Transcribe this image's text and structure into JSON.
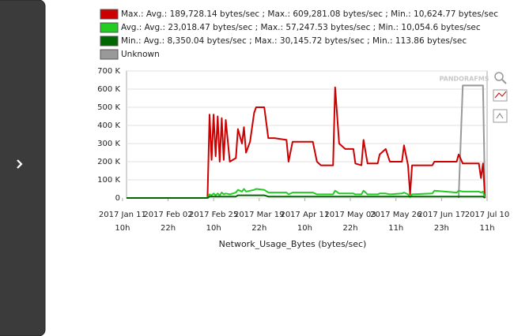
{
  "chart_data": {
    "type": "line",
    "xlabel": "Network_Usage_Bytes (bytes/sec)",
    "watermark": "PANDORAFMS",
    "xlim": [
      "2017-01-13T10",
      "2017-07-10T11"
    ],
    "xticks": [
      {
        "value": "2017-01-11T10",
        "label": "2017 Jan 11 10h"
      },
      {
        "value": "2017-02-02T22",
        "label": "2017 Feb 02 22h"
      },
      {
        "value": "2017-02-25T10",
        "label": "2017 Feb 25 10h"
      },
      {
        "value": "2017-03-19T22",
        "label": "2017 Mar 19 22h"
      },
      {
        "value": "2017-04-11T10",
        "label": "2017 Apr 11 10h"
      },
      {
        "value": "2017-05-03T22",
        "label": "2017 May 03 22h"
      },
      {
        "value": "2017-05-26T11",
        "label": "2017 May 26 11h"
      },
      {
        "value": "2017-06-17T23",
        "label": "2017 Jun 17 23h"
      },
      {
        "value": "2017-07-10T11",
        "label": "2017 Jul 10 11h"
      }
    ],
    "ylim": [
      0,
      700000
    ],
    "yticks": [
      0,
      {
        "value": 100000,
        "label": "100 K"
      },
      {
        "value": 200000,
        "label": "200 K"
      },
      {
        "value": 300000,
        "label": "300 K"
      },
      {
        "value": 400000,
        "label": "400 K"
      },
      {
        "value": 500000,
        "label": "500 K"
      },
      {
        "value": 600000,
        "label": "600 K"
      },
      {
        "value": 700000,
        "label": "700 K"
      }
    ],
    "x": [
      "2017-01-13T10",
      "2017-02-22T10",
      "2017-02-23T10",
      "2017-02-24T10",
      "2017-02-25T10",
      "2017-02-26T10",
      "2017-02-27T10",
      "2017-02-28T10",
      "2017-03-01T10",
      "2017-03-02T10",
      "2017-03-03T10",
      "2017-03-05T10",
      "2017-03-08T10",
      "2017-03-09T10",
      "2017-03-11T10",
      "2017-03-12T10",
      "2017-03-13T10",
      "2017-03-15T10",
      "2017-03-17T10",
      "2017-03-18T10",
      "2017-03-22T10",
      "2017-03-24T10",
      "2017-03-27T10",
      "2017-04-02T10",
      "2017-04-03T10",
      "2017-04-05T10",
      "2017-04-15T10",
      "2017-04-17T10",
      "2017-04-19T10",
      "2017-04-25T10",
      "2017-04-26T10",
      "2017-04-28T10",
      "2017-05-01T10",
      "2017-05-05T10",
      "2017-05-06T10",
      "2017-05-09T10",
      "2017-05-10T10",
      "2017-05-12T10",
      "2017-05-17T10",
      "2017-05-18T10",
      "2017-05-21T10",
      "2017-05-23T10",
      "2017-05-29T10",
      "2017-05-30T10",
      "2017-06-01T10",
      "2017-06-02T10",
      "2017-06-03T10",
      "2017-06-13T10",
      "2017-06-14T10",
      "2017-06-25T10",
      "2017-06-26T10",
      "2017-06-28T10",
      "2017-07-06T10",
      "2017-07-07T10",
      "2017-07-08T10",
      "2017-07-09T10"
    ],
    "series": [
      {
        "name": "Max.: Avg.: 189,728.14 bytes/sec ; Max.: 609,281.08 bytes/sec ; Min.: 10,624.77 bytes/sec",
        "color": "#cc0000",
        "values": [
          0,
          0,
          460000,
          210000,
          460000,
          230000,
          450000,
          200000,
          440000,
          210000,
          430000,
          200000,
          220000,
          380000,
          300000,
          390000,
          250000,
          310000,
          470000,
          500000,
          500000,
          330000,
          330000,
          320000,
          200000,
          310000,
          310000,
          200000,
          180000,
          180000,
          610000,
          300000,
          270000,
          270000,
          190000,
          180000,
          320000,
          190000,
          190000,
          240000,
          270000,
          200000,
          200000,
          290000,
          180000,
          20000,
          180000,
          180000,
          200000,
          200000,
          240000,
          190000,
          190000,
          110000,
          190000,
          0
        ]
      },
      {
        "name": "Avg.: Avg.: 23,018.47 bytes/sec ; Max.: 57,247.53 bytes/sec ; Min.: 10,054.6 bytes/sec",
        "color": "#22cc22",
        "values": [
          0,
          0,
          20000,
          15000,
          25000,
          15000,
          25000,
          15000,
          30000,
          20000,
          25000,
          20000,
          30000,
          45000,
          35000,
          50000,
          35000,
          40000,
          45000,
          50000,
          45000,
          30000,
          30000,
          30000,
          20000,
          30000,
          30000,
          20000,
          20000,
          20000,
          40000,
          25000,
          25000,
          25000,
          20000,
          20000,
          40000,
          20000,
          20000,
          25000,
          25000,
          20000,
          25000,
          30000,
          20000,
          5000,
          20000,
          25000,
          40000,
          30000,
          40000,
          35000,
          35000,
          30000,
          35000,
          0
        ]
      },
      {
        "name": "Min.: Avg.: 8,350.04 bytes/sec ; Max.: 30,145.72 bytes/sec ; Min.: 113.86 bytes/sec",
        "color": "#006600",
        "values": [
          0,
          0,
          8000,
          8000,
          8000,
          8000,
          8000,
          8000,
          8000,
          8000,
          8000,
          8000,
          8000,
          15000,
          15000,
          15000,
          15000,
          15000,
          15000,
          15000,
          15000,
          8000,
          8000,
          8000,
          8000,
          8000,
          8000,
          8000,
          8000,
          8000,
          8000,
          8000,
          8000,
          8000,
          8000,
          8000,
          8000,
          8000,
          8000,
          8000,
          8000,
          8000,
          8000,
          8000,
          8000,
          8000,
          8000,
          8000,
          8000,
          8000,
          8000,
          8000,
          8000,
          8000,
          8000,
          0
        ]
      },
      {
        "name": "Unknown",
        "color": "#999999",
        "values": [
          null,
          null,
          null,
          null,
          null,
          null,
          null,
          null,
          null,
          null,
          null,
          null,
          null,
          null,
          null,
          null,
          null,
          null,
          null,
          null,
          null,
          null,
          null,
          null,
          null,
          null,
          null,
          null,
          null,
          null,
          null,
          null,
          null,
          null,
          null,
          null,
          null,
          null,
          null,
          null,
          null,
          null,
          null,
          null,
          null,
          null,
          null,
          null,
          null,
          null,
          0,
          620000,
          620000,
          620000,
          620000,
          0
        ]
      }
    ]
  }
}
